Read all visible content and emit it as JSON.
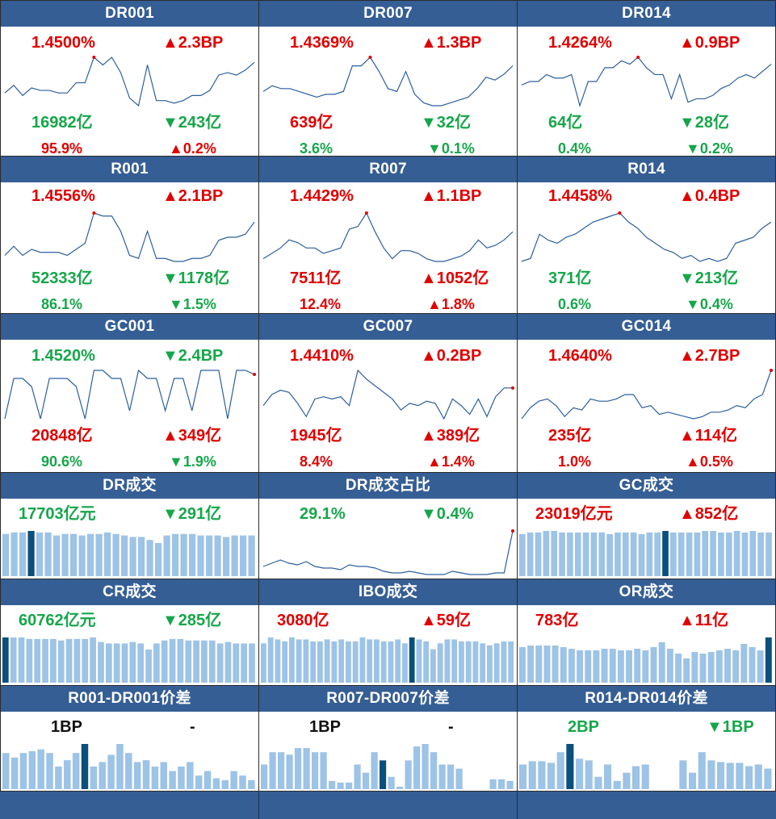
{
  "colors": {
    "header": "#355e94",
    "up": "#e00000",
    "down": "#16a64a",
    "line": "#2c5f9e",
    "bar": "#9dc3e6",
    "bar_hi": "#0b4f7c"
  },
  "rates": [
    {
      "title": "DR001",
      "rate": "1.4500%",
      "bp": "▲2.3BP",
      "vol": "16982亿",
      "dvol": "▼243亿",
      "pct": "95.9%",
      "dpct": "▲0.2%",
      "rc": "up",
      "bc": "up",
      "vc": "dn",
      "dvc": "dn",
      "pc": "up",
      "dpc": "up",
      "series": [
        1.441,
        1.444,
        1.44,
        1.443,
        1.442,
        1.442,
        1.441,
        1.441,
        1.445,
        1.445,
        1.455,
        1.452,
        1.455,
        1.449,
        1.439,
        1.436,
        1.452,
        1.438,
        1.438,
        1.437,
        1.438,
        1.44,
        1.44,
        1.442,
        1.448,
        1.449,
        1.448,
        1.45,
        1.453
      ]
    },
    {
      "title": "DR007",
      "rate": "1.4369%",
      "bp": "▲1.3BP",
      "vol": "639亿",
      "dvol": "▼32亿",
      "pct": "3.6%",
      "dpct": "▼0.1%",
      "rc": "up",
      "bc": "up",
      "vc": "up",
      "dvc": "dn",
      "pc": "dn",
      "dpc": "dn",
      "series": [
        1.425,
        1.427,
        1.426,
        1.426,
        1.425,
        1.424,
        1.423,
        1.424,
        1.424,
        1.425,
        1.434,
        1.434,
        1.437,
        1.432,
        1.426,
        1.425,
        1.432,
        1.424,
        1.421,
        1.42,
        1.42,
        1.421,
        1.422,
        1.423,
        1.426,
        1.43,
        1.429,
        1.431,
        1.434
      ]
    },
    {
      "title": "DR014",
      "rate": "1.4264%",
      "bp": "▲0.9BP",
      "vol": "64亿",
      "dvol": "▼28亿",
      "pct": "0.4%",
      "dpct": "▼0.2%",
      "rc": "up",
      "bc": "up",
      "vc": "dn",
      "dvc": "dn",
      "pc": "dn",
      "dpc": "dn",
      "series": [
        1.418,
        1.419,
        1.419,
        1.421,
        1.42,
        1.42,
        1.421,
        1.412,
        1.419,
        1.419,
        1.423,
        1.423,
        1.425,
        1.424,
        1.426,
        1.423,
        1.421,
        1.421,
        1.414,
        1.421,
        1.413,
        1.414,
        1.414,
        1.415,
        1.417,
        1.418,
        1.42,
        1.421,
        1.42,
        1.422,
        1.424
      ]
    },
    {
      "title": "R001",
      "rate": "1.4556%",
      "bp": "▲2.1BP",
      "vol": "52333亿",
      "dvol": "▼1178亿",
      "pct": "86.1%",
      "dpct": "▼1.5%",
      "rc": "up",
      "bc": "up",
      "vc": "dn",
      "dvc": "dn",
      "pc": "dn",
      "dpc": "dn",
      "series": [
        1.441,
        1.444,
        1.441,
        1.443,
        1.442,
        1.442,
        1.442,
        1.441,
        1.443,
        1.445,
        1.455,
        1.454,
        1.454,
        1.449,
        1.441,
        1.44,
        1.449,
        1.44,
        1.44,
        1.439,
        1.439,
        1.44,
        1.44,
        1.441,
        1.446,
        1.447,
        1.447,
        1.448,
        1.452
      ]
    },
    {
      "title": "R007",
      "rate": "1.4429%",
      "bp": "▲1.1BP",
      "vol": "7511亿",
      "dvol": "▲1052亿",
      "pct": "12.4%",
      "dpct": "▲1.8%",
      "rc": "up",
      "bc": "up",
      "vc": "up",
      "dvc": "up",
      "pc": "up",
      "dpc": "up",
      "series": [
        1.426,
        1.428,
        1.43,
        1.433,
        1.432,
        1.43,
        1.43,
        1.428,
        1.429,
        1.43,
        1.437,
        1.438,
        1.443,
        1.436,
        1.43,
        1.426,
        1.429,
        1.429,
        1.428,
        1.426,
        1.425,
        1.425,
        1.426,
        1.427,
        1.429,
        1.433,
        1.43,
        1.431,
        1.433,
        1.436
      ]
    },
    {
      "title": "R014",
      "rate": "1.4458%",
      "bp": "▲0.4BP",
      "vol": "371亿",
      "dvol": "▼213亿",
      "pct": "0.6%",
      "dpct": "▼0.4%",
      "rc": "up",
      "bc": "up",
      "vc": "dn",
      "dvc": "dn",
      "pc": "dn",
      "dpc": "dn",
      "series": [
        1.429,
        1.43,
        1.438,
        1.436,
        1.435,
        1.437,
        1.438,
        1.44,
        1.442,
        1.443,
        1.444,
        1.445,
        1.442,
        1.44,
        1.437,
        1.435,
        1.433,
        1.432,
        1.43,
        1.431,
        1.429,
        1.43,
        1.429,
        1.43,
        1.435,
        1.436,
        1.437,
        1.44,
        1.442
      ]
    },
    {
      "title": "GC001",
      "rate": "1.4520%",
      "bp": "▼2.4BP",
      "vol": "20848亿",
      "dvol": "▲349亿",
      "pct": "90.6%",
      "dpct": "▼1.9%",
      "rc": "dn",
      "bc": "dn",
      "vc": "up",
      "dvc": "up",
      "pc": "dn",
      "dpc": "dn",
      "series": [
        1.4,
        1.45,
        1.45,
        1.44,
        1.4,
        1.45,
        1.45,
        1.45,
        1.44,
        1.4,
        1.46,
        1.46,
        1.45,
        1.45,
        1.41,
        1.46,
        1.45,
        1.45,
        1.41,
        1.45,
        1.45,
        1.41,
        1.46,
        1.46,
        1.46,
        1.4,
        1.46,
        1.46,
        1.455
      ]
    },
    {
      "title": "GC007",
      "rate": "1.4410%",
      "bp": "▲0.2BP",
      "vol": "1945亿",
      "dvol": "▲389亿",
      "pct": "8.4%",
      "dpct": "▲1.4%",
      "rc": "up",
      "bc": "up",
      "vc": "up",
      "dvc": "up",
      "pc": "up",
      "dpc": "up",
      "series": [
        1.425,
        1.43,
        1.432,
        1.431,
        1.426,
        1.42,
        1.428,
        1.429,
        1.428,
        1.429,
        1.425,
        1.441,
        1.437,
        1.434,
        1.431,
        1.428,
        1.423,
        1.426,
        1.425,
        1.427,
        1.426,
        1.419,
        1.428,
        1.425,
        1.421,
        1.428,
        1.42,
        1.429,
        1.433,
        1.433
      ]
    },
    {
      "title": "GC014",
      "rate": "1.4640%",
      "bp": "▲2.7BP",
      "vol": "235亿",
      "dvol": "▲114亿",
      "pct": "1.0%",
      "dpct": "▲0.5%",
      "rc": "up",
      "bc": "up",
      "vc": "up",
      "dvc": "up",
      "pc": "up",
      "dpc": "up",
      "series": [
        1.44,
        1.445,
        1.448,
        1.449,
        1.446,
        1.441,
        1.445,
        1.444,
        1.449,
        1.448,
        1.448,
        1.449,
        1.451,
        1.451,
        1.445,
        1.446,
        1.442,
        1.443,
        1.442,
        1.441,
        1.44,
        1.441,
        1.443,
        1.443,
        1.444,
        1.446,
        1.445,
        1.449,
        1.451,
        1.462
      ]
    }
  ],
  "volumes": [
    {
      "title": "DR成交",
      "vol": "17703亿元",
      "chg": "▼291亿",
      "vc": "dn",
      "cc": "dn",
      "kind": "bar",
      "hi": 3,
      "series": [
        28,
        29,
        29,
        30,
        29,
        29,
        27,
        28,
        28,
        27,
        28,
        28,
        29,
        28,
        27,
        26,
        26,
        24,
        22,
        27,
        28,
        28,
        28,
        27,
        27,
        27,
        26,
        27,
        27,
        27
      ]
    },
    {
      "title": "DR成交占比",
      "vol": "29.1%",
      "chg": "▼0.4%",
      "vc": "dn",
      "cc": "dn",
      "kind": "line",
      "series": [
        7,
        9,
        11,
        9,
        8,
        10,
        7,
        6,
        6,
        5,
        8,
        7,
        7,
        6,
        4,
        3,
        3,
        4,
        3,
        2,
        2,
        2,
        4,
        3,
        2,
        2,
        2,
        3,
        3,
        29
      ]
    },
    {
      "title": "GC成交",
      "vol": "23019亿元",
      "chg": "▲852亿",
      "vc": "up",
      "cc": "up",
      "kind": "bar",
      "hi": 18,
      "series": [
        27,
        28,
        28,
        29,
        29,
        28,
        28,
        28,
        28,
        28,
        28,
        27,
        28,
        28,
        28,
        27,
        28,
        28,
        29,
        28,
        28,
        28,
        28,
        29,
        29,
        28,
        28,
        29,
        28,
        29,
        28,
        28
      ]
    },
    {
      "title": "CR成交",
      "vol": "60762亿元",
      "chg": "▼285亿",
      "vc": "dn",
      "cc": "dn",
      "kind": "bar",
      "hi": 0,
      "series": [
        30,
        30,
        30,
        29,
        29,
        29,
        29,
        28,
        29,
        29,
        29,
        30,
        27,
        26,
        26,
        26,
        27,
        26,
        22,
        26,
        28,
        29,
        29,
        28,
        28,
        28,
        28,
        26,
        27,
        26,
        26,
        26
      ]
    },
    {
      "title": "IBO成交",
      "vol": "3080亿",
      "chg": "▲59亿",
      "vc": "up",
      "cc": "up",
      "kind": "bar",
      "hi": 21,
      "series": [
        20,
        23,
        22,
        21,
        23,
        22,
        22,
        21,
        21,
        22,
        21,
        22,
        21,
        21,
        23,
        22,
        22,
        21,
        21,
        22,
        20,
        23,
        22,
        21,
        17,
        20,
        22,
        22,
        21,
        21,
        21,
        20,
        19,
        20,
        21,
        21
      ]
    },
    {
      "title": "OR成交",
      "vol": "783亿",
      "chg": "▲11亿",
      "vc": "up",
      "cc": "up",
      "kind": "bar",
      "hi": 30,
      "series": [
        22,
        23,
        23,
        23,
        23,
        22,
        21,
        20,
        20,
        20,
        21,
        21,
        20,
        20,
        21,
        20,
        22,
        25,
        21,
        18,
        15,
        19,
        18,
        19,
        20,
        21,
        20,
        24,
        22,
        20,
        28
      ]
    }
  ],
  "spreads": [
    {
      "title": "R001-DR001价差",
      "val": "1BP",
      "chg": "-",
      "vc": "nt",
      "cc": "nt",
      "hi": 9,
      "series": [
        4,
        3.5,
        4,
        4.2,
        4.4,
        4,
        2.5,
        3.2,
        4,
        5,
        2.5,
        3,
        3.8,
        5,
        4,
        3,
        3.2,
        2.5,
        3,
        2,
        2.5,
        3,
        1.5,
        2,
        1.2,
        1,
        2,
        1.5,
        1
      ]
    },
    {
      "title": "R007-DR007价差",
      "val": "1BP",
      "chg": "-",
      "vc": "nt",
      "cc": "nt",
      "hi": 14,
      "series": [
        3,
        4.5,
        4.5,
        4.2,
        5,
        5,
        4.5,
        4.5,
        1,
        0.8,
        0.8,
        3,
        2,
        4.5,
        3.5,
        1.5,
        0.3,
        3.5,
        5.2,
        5.5,
        4.5,
        3,
        3,
        2.5,
        0,
        0,
        0,
        1.2,
        1.2,
        1
      ]
    },
    {
      "title": "R014-DR014价差",
      "val": "2BP",
      "chg": "▼1BP",
      "vc": "dn",
      "cc": "dn",
      "hi": 5,
      "series": [
        3,
        3.4,
        3.4,
        3.2,
        4.5,
        5.5,
        3.7,
        3.5,
        1.5,
        3,
        1,
        2,
        2.8,
        3,
        0,
        0,
        0,
        3.5,
        2,
        4.5,
        3.5,
        3.3,
        3.2,
        3.2,
        2.8,
        3,
        2.5
      ]
    }
  ]
}
